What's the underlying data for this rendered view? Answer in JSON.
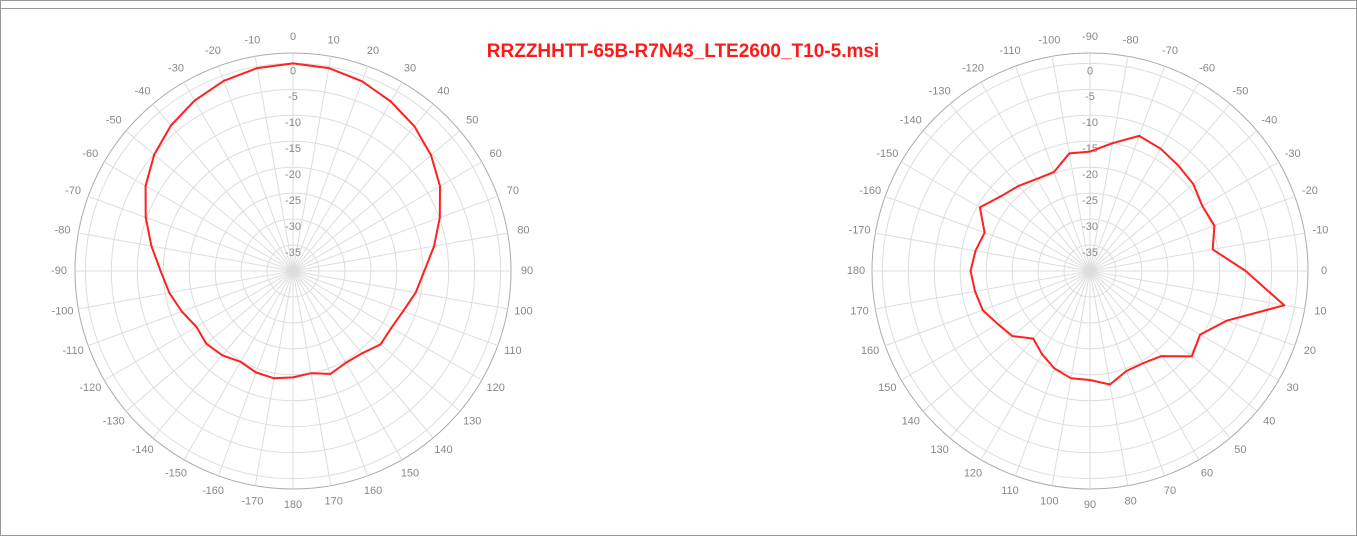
{
  "chart_data": [
    {
      "type": "polar",
      "title": "RRZZHHTT-65B-R7N43_LTE2600_T10-5.msi",
      "theta_zero": "N",
      "theta_direction": "clockwise",
      "grid": true,
      "theta": [
        -180,
        -170,
        -160,
        -150,
        -140,
        -130,
        -120,
        -110,
        -100,
        -90,
        -80,
        -70,
        -60,
        -50,
        -40,
        -30,
        -20,
        -10,
        0,
        10,
        20,
        30,
        40,
        50,
        60,
        70,
        80,
        90,
        100,
        110,
        120,
        130,
        140,
        150,
        160,
        170
      ],
      "series": [
        {
          "color": "#ff2020",
          "values": [
            -19.5,
            -19,
            -19.2,
            -19.8,
            -18.8,
            -18.2,
            -18.5,
            -17.2,
            -15.8,
            -14.5,
            -12.3,
            -9.8,
            -7.2,
            -5.1,
            -3.4,
            -2.1,
            -1.0,
            -0.3,
            0,
            -0.3,
            -1.1,
            -2.3,
            -3.6,
            -5.3,
            -7.3,
            -9.9,
            -12.4,
            -14.7,
            -16,
            -17.4,
            -18.1,
            -18,
            -19.3,
            -19.6,
            -18.9,
            -20
          ]
        }
      ],
      "rlim": [
        -40,
        2
      ],
      "rticks": [
        0,
        -5,
        -10,
        -15,
        -20,
        -25,
        -30,
        -35
      ],
      "thetaticks": [
        -170,
        -160,
        -150,
        -140,
        -130,
        -120,
        -110,
        -100,
        -90,
        -80,
        -70,
        -60,
        -50,
        -40,
        -30,
        -20,
        -10,
        0,
        10,
        20,
        30,
        40,
        50,
        60,
        70,
        80,
        90,
        100,
        110,
        120,
        130,
        140,
        150,
        160,
        170,
        180
      ]
    },
    {
      "type": "polar",
      "theta_zero": "E",
      "theta_direction": "clockwise",
      "grid": true,
      "theta": [
        -180,
        -170,
        -160,
        -150,
        -140,
        -130,
        -120,
        -110,
        -100,
        -90,
        -80,
        -70,
        -60,
        -50,
        -40,
        -30,
        -20,
        -10,
        0,
        10,
        20,
        30,
        40,
        50,
        60,
        70,
        80,
        90,
        100,
        110,
        120,
        130,
        140,
        150,
        160,
        170
      ],
      "series": [
        {
          "color": "#ff2020",
          "values": [
            -17,
            -17.6,
            -18.4,
            -15.5,
            -17.6,
            -18.6,
            -19.5,
            -19.7,
            -17,
            -17,
            -15,
            -12.3,
            -12.8,
            -13.5,
            -14,
            -15,
            -14.5,
            -16,
            -10,
            -2,
            -12,
            -15.5,
            -14.4,
            -18.6,
            -19.5,
            -19.5,
            -17.8,
            -19,
            -19,
            -20,
            -21.5,
            -23,
            -20.5,
            -19.5,
            -18,
            -17.5
          ]
        }
      ],
      "rlim": [
        -40,
        2
      ],
      "rticks": [
        0,
        -5,
        -10,
        -15,
        -20,
        -25,
        -30,
        -35
      ],
      "thetaticks": [
        -170,
        -160,
        -150,
        -140,
        -130,
        -120,
        -110,
        -100,
        -90,
        -80,
        -70,
        -60,
        -50,
        -40,
        -30,
        -20,
        -10,
        0,
        10,
        20,
        30,
        40,
        50,
        60,
        70,
        80,
        90,
        100,
        110,
        120,
        130,
        140,
        150,
        160,
        170,
        180
      ]
    }
  ]
}
